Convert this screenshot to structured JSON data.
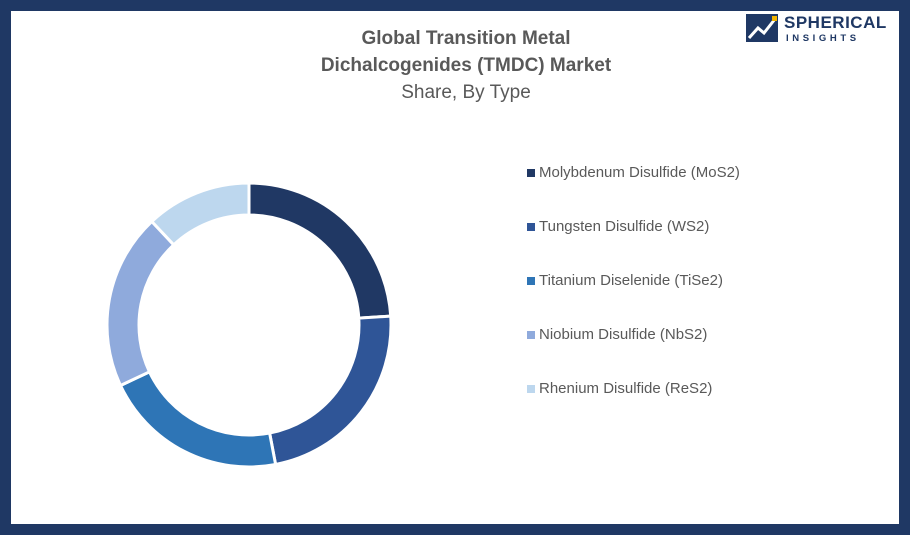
{
  "logo": {
    "line1": "SPHERICAL",
    "line2": "INSIGHTS"
  },
  "chart_data": {
    "type": "pie",
    "donut": true,
    "title": "Global Transition Metal Dichalcogenides (TMDC) Market",
    "title_line1": "Global Transition Metal",
    "title_line2": "Dichalcogenides (TMDC) Market",
    "subtitle": "Share, By Type",
    "legend_position": "right",
    "categories": [
      "Molybdenum Disulfide (MoS2)",
      "Tungsten Disulfide (WS2)",
      "Titanium Diselenide (TiSe2)",
      "Niobium Disulfide (NbS2)",
      "Rhenium Disulfide (ReS2)"
    ],
    "values": [
      24,
      23,
      21,
      20,
      12
    ],
    "colors": [
      "#203864",
      "#2f5597",
      "#2e75b6",
      "#8faadc",
      "#bdd7ee"
    ]
  }
}
